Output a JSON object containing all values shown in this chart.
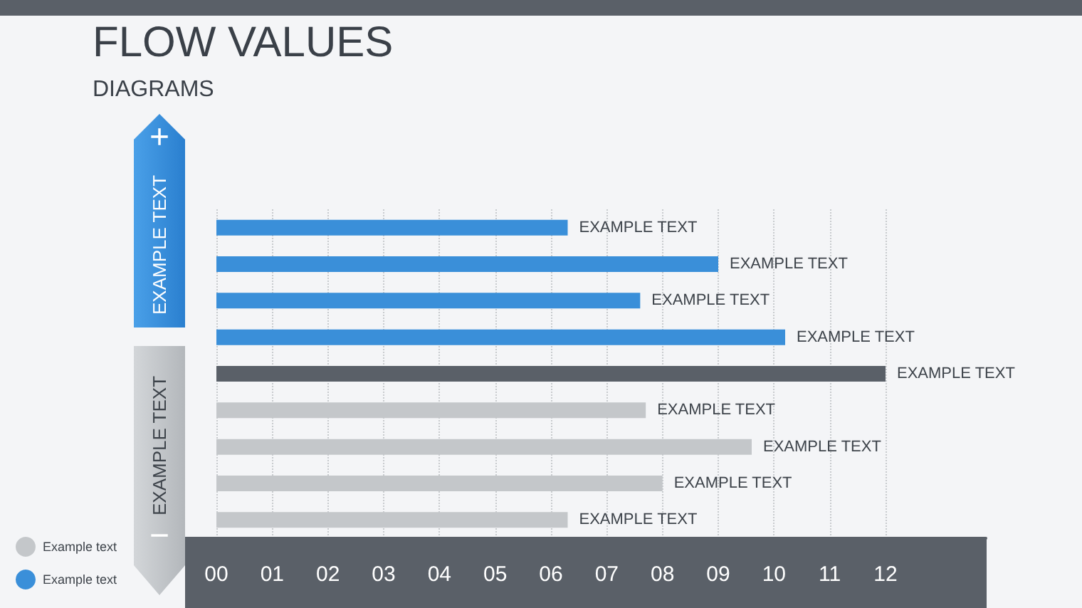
{
  "chart_data": {
    "type": "bar",
    "orientation": "horizontal",
    "title": "FLOW VALUES",
    "subtitle": "DIAGRAMS",
    "categories": [
      null,
      null,
      null,
      null,
      null,
      null,
      null,
      null,
      null
    ],
    "series": [
      {
        "name": "Example text",
        "color": "#c4c7ca",
        "values": [
          null,
          null,
          null,
          null,
          null,
          7.7,
          9.6,
          8.0,
          6.3
        ],
        "value_labels": [
          null,
          null,
          null,
          null,
          null,
          "EXAMPLE TEXT",
          "EXAMPLE TEXT",
          "EXAMPLE TEXT",
          "EXAMPLE TEXT"
        ]
      },
      {
        "name": "Example text",
        "color": "#3a8fd9",
        "values": [
          6.3,
          9.0,
          7.6,
          10.2,
          null,
          null,
          null,
          null,
          null
        ],
        "value_labels": [
          "EXAMPLE TEXT",
          "EXAMPLE TEXT",
          "EXAMPLE TEXT",
          "EXAMPLE TEXT",
          null,
          null,
          null,
          null,
          null
        ]
      },
      {
        "color": "#5a6068",
        "values": [
          null,
          null,
          null,
          null,
          12.0,
          null,
          null,
          null,
          null
        ],
        "value_labels": [
          null,
          null,
          null,
          null,
          "EXAMPLE TEXT",
          null,
          null,
          null,
          null
        ]
      }
    ],
    "xlim": [
      -0.6,
      13.8
    ],
    "xticks": [
      {
        "value": 0,
        "label": "00"
      },
      {
        "value": 1,
        "label": "01"
      },
      {
        "value": 2,
        "label": "02"
      },
      {
        "value": 3,
        "label": "03"
      },
      {
        "value": 4,
        "label": "04"
      },
      {
        "value": 5,
        "label": "05"
      },
      {
        "value": 6,
        "label": "06"
      },
      {
        "value": 7,
        "label": "07"
      },
      {
        "value": 8,
        "label": "08"
      },
      {
        "value": 9,
        "label": "09"
      },
      {
        "value": 10,
        "label": "10"
      },
      {
        "value": 11,
        "label": "11"
      },
      {
        "value": 12,
        "label": "12"
      }
    ],
    "annotations": [
      "+",
      "EXAMPLE TEXT",
      "EXAMPLE TEXT",
      "−"
    ],
    "grid": "x",
    "line_style": "dotted",
    "legend": "bottom left",
    "tick_labels": "x"
  }
}
